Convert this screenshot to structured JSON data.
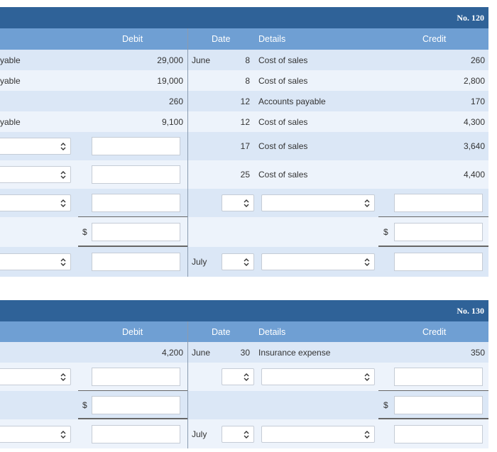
{
  "ledgers": [
    {
      "number": "No. 120",
      "headers": {
        "debit": "Debit",
        "date": "Date",
        "details": "Details",
        "credit": "Credit"
      },
      "rows": [
        {
          "account": "yable",
          "debit": "29,000",
          "month": "June",
          "day": "8",
          "details": "Cost of sales",
          "credit": "260"
        },
        {
          "account": "yable",
          "debit": "19,000",
          "day": "8",
          "details": "Cost of sales",
          "credit": "2,800"
        },
        {
          "debit": "260",
          "day": "12",
          "details": "Accounts payable",
          "credit": "170"
        },
        {
          "account": "yable",
          "debit": "9,100",
          "day": "12",
          "details": "Cost of sales",
          "credit": "4,300"
        },
        {
          "day": "17",
          "details": "Cost of sales",
          "credit": "3,640"
        },
        {
          "day": "25",
          "details": "Cost of sales",
          "credit": "4,400"
        }
      ],
      "total_symbol": "$",
      "closing_month": "July"
    },
    {
      "number": "No. 130",
      "headers": {
        "debit": "Debit",
        "date": "Date",
        "details": "Details",
        "credit": "Credit"
      },
      "rows": [
        {
          "debit": "4,200",
          "month": "June",
          "day": "30",
          "details": "Insurance expense",
          "credit": "350"
        }
      ],
      "total_symbol": "$",
      "closing_month": "July"
    }
  ]
}
